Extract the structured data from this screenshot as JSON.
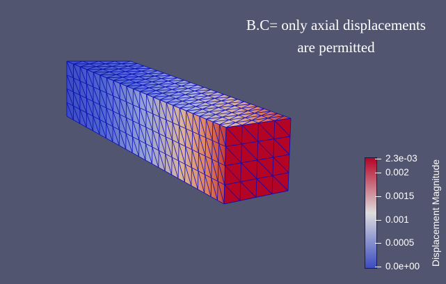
{
  "annotation": {
    "line1": "B.C= only axial displacements",
    "line2": "are permitted"
  },
  "colorbar": {
    "title": "Displacement Magnitude",
    "ticks": [
      {
        "label": "2.3e-03",
        "value": 0.0023
      },
      {
        "label": "0.002",
        "value": 0.002
      },
      {
        "label": "0.0015",
        "value": 0.0015
      },
      {
        "label": "0.001",
        "value": 0.001
      },
      {
        "label": "0.0005",
        "value": 0.0005
      },
      {
        "label": "0.0e+00",
        "value": 0.0
      }
    ],
    "range": [
      0.0,
      0.0023
    ],
    "colormap": [
      "#3b4cc0",
      "#dddddd",
      "#b40426"
    ]
  },
  "mesh": {
    "type": "hexahedral beam with triangulated faces",
    "edge_color": "#0a0ab4",
    "end_color": "#b40426",
    "background": "#525570"
  }
}
